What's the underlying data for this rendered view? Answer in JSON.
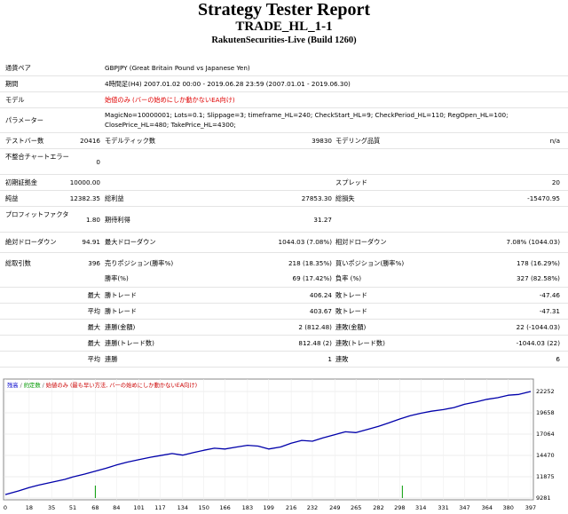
{
  "report": {
    "title": "Strategy Tester Report",
    "ea_name": "TRADE_HL_1-1",
    "server": "RakutenSecurities-Live (Build 1260)"
  },
  "summary": {
    "symbol_label": "通貨ペア",
    "symbol_value": "GBPJPY (Great Britain Pound vs Japanese Yen)",
    "period_label": "期間",
    "period_value": "4時間足(H4) 2007.01.02 00:00 - 2019.06.28 23:59 (2007.01.01 - 2019.06.30)",
    "model_label": "モデル",
    "model_value": "始値のみ (バーの始めにしか動かないEA向け)",
    "params_label": "パラメーター",
    "params_line1": "MagicNo=10000001; Lots=0.1; Slippage=3; timeframe_HL=240; CheckStart_HL=9; CheckPeriod_HL=110; RegOpen_HL=100;",
    "params_line2": "ClosePrice_HL=480; TakePrice_HL=4300;",
    "bars_label": "テストバー数",
    "bars_value": "20416",
    "ticks_label": "モデルティック数",
    "ticks_value": "39830",
    "quality_label": "モデリング品質",
    "quality_value": "n/a",
    "mismatch_label": "不整合チャートエラー",
    "mismatch_value": "0"
  },
  "stats": {
    "deposit_label": "初期証拠金",
    "deposit_value": "10000.00",
    "spread_label": "スプレッド",
    "spread_value": "20",
    "net_label": "純益",
    "net_value": "12382.35",
    "gross_profit_label": "総利益",
    "gross_profit_value": "27853.30",
    "gross_loss_label": "総損失",
    "gross_loss_value": "-15470.95",
    "pf_label": "プロフィットファクタ",
    "pf_value": "1.80",
    "payoff_label": "期待利得",
    "payoff_value": "31.27",
    "abs_dd_label": "絶対ドローダウン",
    "abs_dd_value": "94.91",
    "max_dd_label": "最大ドローダウン",
    "max_dd_value": "1044.03 (7.08%)",
    "rel_dd_label": "相対ドローダウン",
    "rel_dd_value": "7.08% (1044.03)",
    "trades_label": "総取引数",
    "trades_value": "396",
    "short_label": "売りポジション(勝率%)",
    "short_value": "218 (18.35%)",
    "long_label": "買いポジション(勝率%)",
    "long_value": "178 (16.29%)",
    "win_pct_label": "勝率(%)",
    "win_pct_value": "69 (17.42%)",
    "loss_pct_label": "負率 (%)",
    "loss_pct_value": "327 (82.58%)",
    "max_word": "最大",
    "avg_word": "平均",
    "largest_win_label": "勝トレード",
    "largest_win_value": "406.24",
    "largest_loss_label": "敗トレード",
    "largest_loss_value": "-47.46",
    "avg_win_label": "勝トレード",
    "avg_win_value": "403.67",
    "avg_loss_label": "敗トレード",
    "avg_loss_value": "-47.31",
    "cons_wins_money_label": "連勝(金額)",
    "cons_wins_money_value": "2 (812.48)",
    "cons_losses_money_label": "連敗(金額)",
    "cons_losses_money_value": "22 (-1044.03)",
    "cons_profit_label": "連勝(トレード数)",
    "cons_profit_value": "812.48 (2)",
    "cons_loss_label": "連敗(トレード数)",
    "cons_loss_value": "-1044.03 (22)",
    "avg_cons_wins_label": "連勝",
    "avg_cons_wins_value": "1",
    "avg_cons_losses_label": "連敗",
    "avg_cons_losses_value": "6"
  },
  "chart_data": {
    "type": "line",
    "legend": [
      {
        "text": "残高",
        "color": "#0000cc"
      },
      {
        "text": "/",
        "color": "#666666"
      },
      {
        "text": "約定数",
        "color": "#009900"
      },
      {
        "text": "/",
        "color": "#666666"
      },
      {
        "text": "始値のみ (最も早い方法, バーの始めにしか動かないEA向け)",
        "color": "#cc0000"
      }
    ],
    "x_ticks": [
      "0",
      "18",
      "35",
      "51",
      "68",
      "84",
      "101",
      "117",
      "134",
      "150",
      "166",
      "183",
      "199",
      "216",
      "232",
      "249",
      "265",
      "282",
      "298",
      "314",
      "331",
      "347",
      "364",
      "380",
      "397"
    ],
    "y_ticks": [
      "22252",
      "19658",
      "17064",
      "14470",
      "11875",
      "9281"
    ],
    "xlim": [
      0,
      397
    ],
    "ylim": [
      9281,
      22252
    ],
    "series": [
      {
        "color": "#0000aa",
        "x": [
          0,
          10,
          18,
          25,
          35,
          45,
          51,
          60,
          68,
          76,
          84,
          92,
          101,
          110,
          117,
          126,
          134,
          142,
          150,
          158,
          166,
          175,
          183,
          191,
          199,
          208,
          216,
          224,
          232,
          240,
          249,
          257,
          265,
          273,
          282,
          290,
          298,
          306,
          314,
          322,
          331,
          339,
          347,
          356,
          364,
          372,
          380,
          388,
          397
        ],
        "y": [
          9700,
          10150,
          10550,
          10850,
          11200,
          11550,
          11850,
          12200,
          12550,
          12900,
          13300,
          13650,
          13950,
          14250,
          14450,
          14700,
          14500,
          14800,
          15100,
          15350,
          15250,
          15500,
          15700,
          15600,
          15250,
          15500,
          15950,
          16300,
          16200,
          16600,
          17000,
          17350,
          17250,
          17600,
          18000,
          18450,
          18900,
          19300,
          19600,
          19850,
          20050,
          20300,
          20700,
          21000,
          21300,
          21500,
          21800,
          21900,
          22250
        ]
      }
    ],
    "volume_marks": [
      {
        "x": 68,
        "v": 1
      },
      {
        "x": 300,
        "v": 1
      }
    ]
  }
}
